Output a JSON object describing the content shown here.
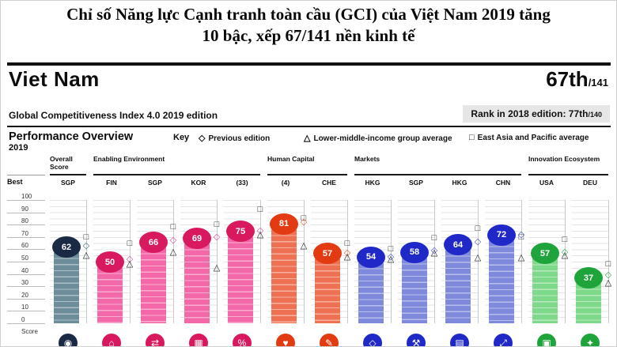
{
  "title": {
    "line1": "Chỉ số Năng lực Cạnh tranh toàn cầu (GCI) của Việt Nam  2019 tăng",
    "line2": "10 bậc,  xếp 67/141 nền kinh tế"
  },
  "header": {
    "country": "Viet Nam",
    "rank": "67th",
    "rank_total": "/141"
  },
  "subheader": {
    "edition": "Global Competitiveness Index 4.0 2019 edition",
    "rank_2018_label": "Rank in 2018 edition: 77th",
    "rank_2018_total": "/140"
  },
  "overview": {
    "title": "Performance Overview",
    "year": "2019",
    "key_label": "Key"
  },
  "axis": {
    "best_label": "Best",
    "score_label": "Score",
    "ticks": [
      100,
      90,
      80,
      70,
      60,
      50,
      40,
      30,
      20,
      10,
      0
    ]
  },
  "chart_data": {
    "type": "bar",
    "title": "Performance Overview 2019",
    "ylabel": "Score",
    "ylim": [
      0,
      100
    ],
    "grid": true,
    "legend_position": "top",
    "legend": [
      {
        "symbol": "◇",
        "label": "Previous edition"
      },
      {
        "symbol": "△",
        "label": "Lower-middle-income group average"
      },
      {
        "symbol": "□",
        "label": "East Asia and Pacific average"
      }
    ],
    "groups": [
      {
        "label": "Overall Score",
        "bar_color": "#6c8d99",
        "badge_color": "#1b2a44",
        "diamond_color": "#3e6f7d",
        "bars": [
          {
            "best_economy": "SGP",
            "value": 62,
            "previous_edition": 63,
            "lower_middle_income_avg": 55,
            "east_asia_pacific_avg": 70,
            "icon": "gauge-icon",
            "glyph": "◉"
          }
        ]
      },
      {
        "label": "Enabling Environment",
        "bar_color": "#f268a8",
        "badge_color": "#d8195f",
        "diamond_color": "#e84a9b",
        "bars": [
          {
            "best_economy": "FIN",
            "value": 50,
            "previous_edition": 52,
            "lower_middle_income_avg": 48,
            "east_asia_pacific_avg": 65,
            "icon": "institutions-icon",
            "glyph": "⌂"
          },
          {
            "best_economy": "SGP",
            "value": 66,
            "previous_edition": 67,
            "lower_middle_income_avg": 58,
            "east_asia_pacific_avg": 78,
            "icon": "infrastructure-icon",
            "glyph": "⇄"
          },
          {
            "best_economy": "KOR",
            "value": 69,
            "previous_edition": 70,
            "lower_middle_income_avg": 45,
            "east_asia_pacific_avg": 80,
            "icon": "ict-adoption-icon",
            "glyph": "▦"
          },
          {
            "best_economy": "(33)",
            "value": 75,
            "previous_edition": 75,
            "lower_middle_income_avg": 72,
            "east_asia_pacific_avg": 92,
            "icon": "macroeconomic-stability-icon",
            "glyph": "%"
          }
        ]
      },
      {
        "label": "Human Capital",
        "bar_color": "#ee7153",
        "badge_color": "#e33b11",
        "diamond_color": "#e8622f",
        "bars": [
          {
            "best_economy": "(4)",
            "value": 81,
            "previous_edition": 82,
            "lower_middle_income_avg": 63,
            "east_asia_pacific_avg": 85,
            "icon": "health-icon",
            "glyph": "♥"
          },
          {
            "best_economy": "CHE",
            "value": 57,
            "previous_edition": 57,
            "lower_middle_income_avg": 54,
            "east_asia_pacific_avg": 65,
            "icon": "skills-icon",
            "glyph": "✎"
          }
        ]
      },
      {
        "label": "Markets",
        "bar_color": "#7f8add",
        "badge_color": "#2029c8",
        "diamond_color": "#4a58d8",
        "bars": [
          {
            "best_economy": "HKG",
            "value": 54,
            "previous_edition": 54,
            "lower_middle_income_avg": 52,
            "east_asia_pacific_avg": 60,
            "icon": "product-market-icon",
            "glyph": "◇"
          },
          {
            "best_economy": "SGP",
            "value": 58,
            "previous_edition": 59,
            "lower_middle_income_avg": 57,
            "east_asia_pacific_avg": 69,
            "icon": "labour-market-icon",
            "glyph": "⚒"
          },
          {
            "best_economy": "HKG",
            "value": 64,
            "previous_edition": 66,
            "lower_middle_income_avg": 53,
            "east_asia_pacific_avg": 77,
            "icon": "financial-system-icon",
            "glyph": "▤"
          },
          {
            "best_economy": "CHN",
            "value": 72,
            "previous_edition": 72,
            "lower_middle_income_avg": 53,
            "east_asia_pacific_avg": 70,
            "icon": "market-size-icon",
            "glyph": "⤢"
          }
        ]
      },
      {
        "label": "Innovation Ecosystem",
        "bar_color": "#7fd98b",
        "badge_color": "#1fa43c",
        "diamond_color": "#35b54f",
        "bars": [
          {
            "best_economy": "USA",
            "value": 57,
            "previous_edition": 58,
            "lower_middle_income_avg": 55,
            "east_asia_pacific_avg": 68,
            "icon": "business-dynamism-icon",
            "glyph": "▣"
          },
          {
            "best_economy": "DEU",
            "value": 37,
            "previous_edition": 39,
            "lower_middle_income_avg": 33,
            "east_asia_pacific_avg": 48,
            "icon": "innovation-capability-icon",
            "glyph": "✦"
          }
        ]
      }
    ]
  }
}
